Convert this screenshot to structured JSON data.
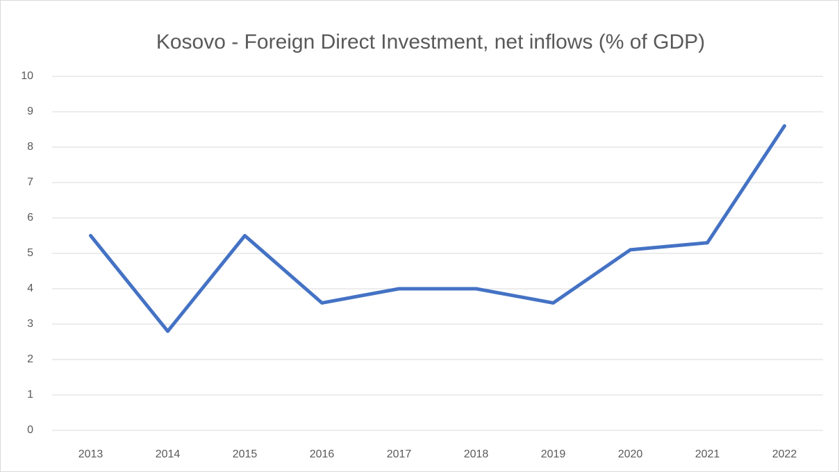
{
  "chart_data": {
    "type": "line",
    "title": "Kosovo - Foreign Direct Investment, net inflows (% of GDP)",
    "categories": [
      "2013",
      "2014",
      "2015",
      "2016",
      "2017",
      "2018",
      "2019",
      "2020",
      "2021",
      "2022"
    ],
    "series": [
      {
        "name": "Kosovo",
        "color": "#4472c4",
        "values": [
          5.5,
          2.8,
          5.5,
          3.6,
          4.0,
          4.0,
          3.6,
          5.1,
          5.3,
          8.6
        ]
      }
    ],
    "ylim": [
      0,
      10
    ],
    "yticks": [
      0,
      1,
      2,
      3,
      4,
      5,
      6,
      7,
      8,
      9,
      10
    ],
    "grid": true
  }
}
